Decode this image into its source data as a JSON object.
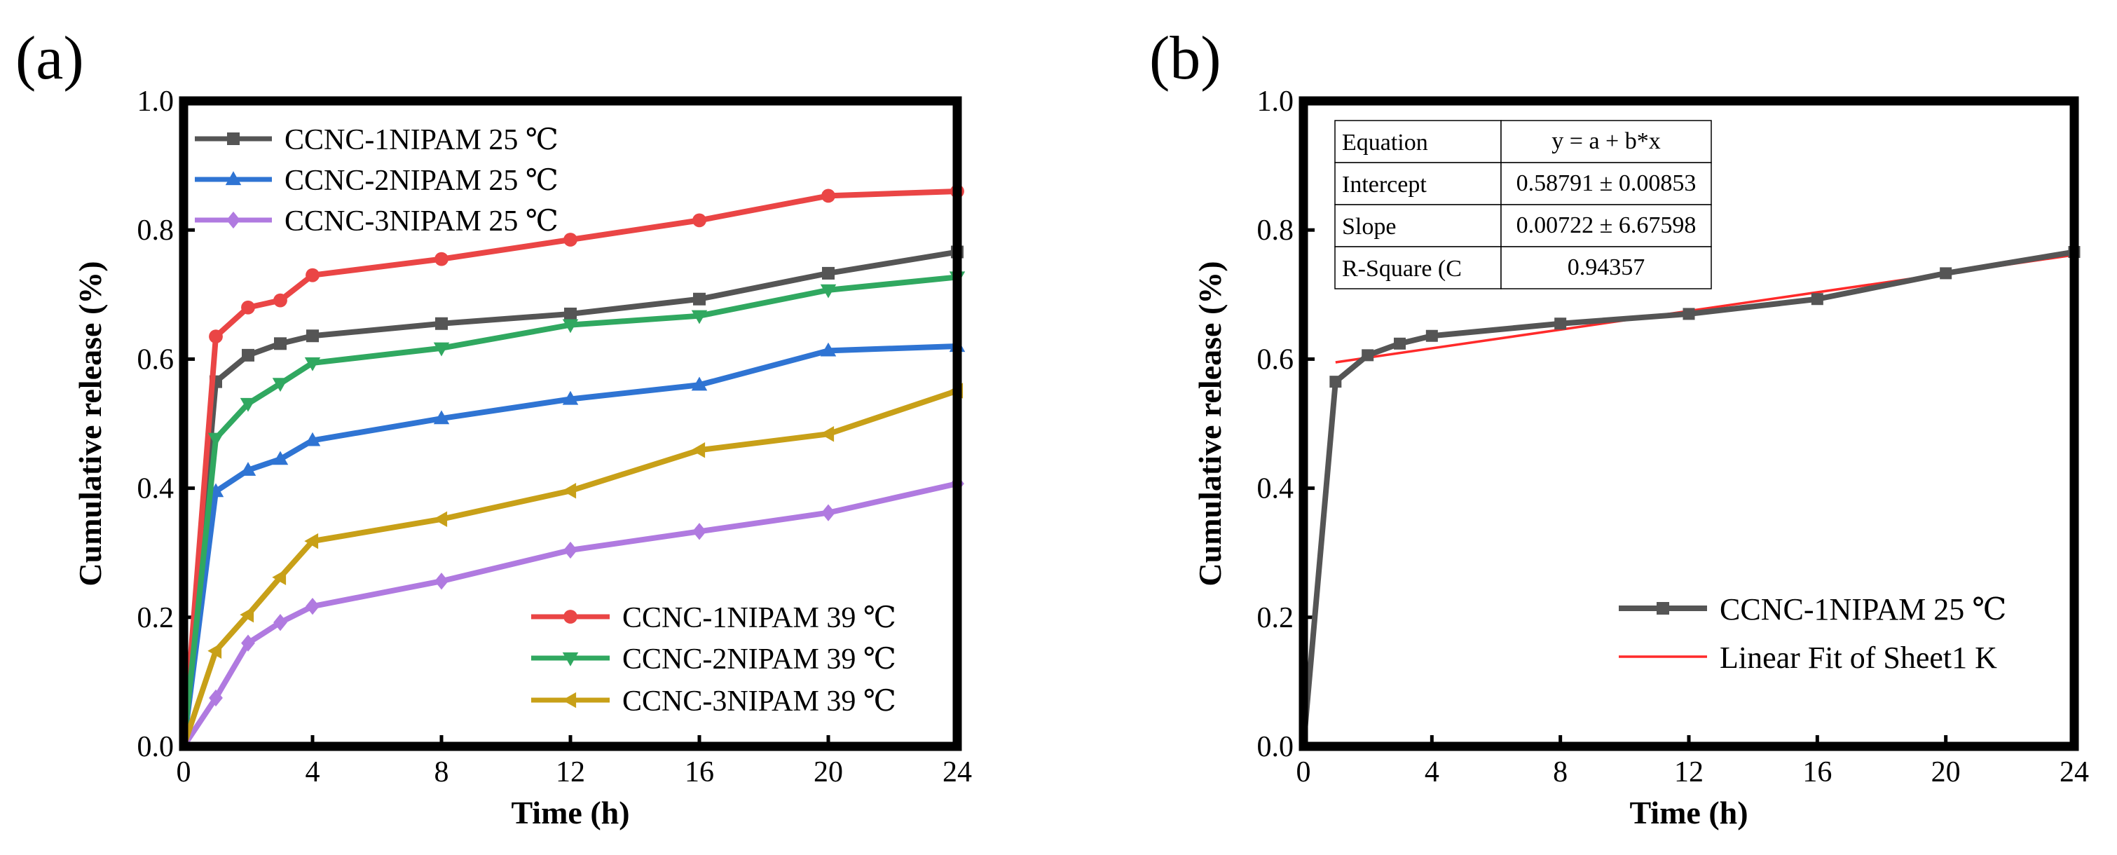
{
  "colors": {
    "series_1": "#555555",
    "series_2": "#2f74d3",
    "series_3": "#b07ae0",
    "series_4": "#ea4545",
    "series_5": "#30a860",
    "series_6": "#c8a018",
    "fit_line": "#ff2a2a",
    "axis": "#000000"
  },
  "chart_data": [
    {
      "panel_label": "(a)",
      "type": "line",
      "xlabel": "Time (h)",
      "ylabel": "Cumulative release (%)",
      "xlim": [
        0,
        24
      ],
      "ylim": [
        0.0,
        1.0
      ],
      "x_ticks": [
        0,
        4,
        8,
        12,
        16,
        20,
        24
      ],
      "y_ticks": [
        "0.0",
        "0.2",
        "0.4",
        "0.6",
        "0.8",
        "1.0"
      ],
      "grid": false,
      "x": [
        0,
        1,
        2,
        3,
        4,
        8,
        12,
        16,
        20,
        24
      ],
      "series": [
        {
          "name": "CCNC-1NIPAM 25 ℃",
          "marker": "square",
          "values": [
            0.0,
            0.565,
            0.606,
            0.624,
            0.636,
            0.655,
            0.67,
            0.693,
            0.733,
            0.766
          ]
        },
        {
          "name": "CCNC-2NIPAM 25 ℃",
          "marker": "triangle-up",
          "values": [
            0.0,
            0.395,
            0.428,
            0.445,
            0.474,
            0.508,
            0.538,
            0.56,
            0.613,
            0.62
          ]
        },
        {
          "name": "CCNC-3NIPAM 25 ℃",
          "marker": "diamond",
          "values": [
            0.0,
            0.075,
            0.16,
            0.192,
            0.217,
            0.256,
            0.304,
            0.333,
            0.362,
            0.407
          ]
        },
        {
          "name": "CCNC-1NIPAM 39 ℃",
          "marker": "circle",
          "values": [
            0.0,
            0.635,
            0.68,
            0.691,
            0.73,
            0.755,
            0.785,
            0.815,
            0.853,
            0.86
          ]
        },
        {
          "name": "CCNC-2NIPAM 39 ℃",
          "marker": "triangle-down",
          "values": [
            0.0,
            0.477,
            0.531,
            0.562,
            0.594,
            0.617,
            0.653,
            0.667,
            0.707,
            0.727
          ]
        },
        {
          "name": "CCNC-3NIPAM 39 ℃",
          "marker": "triangle-left",
          "values": [
            0.0,
            0.148,
            0.204,
            0.262,
            0.318,
            0.352,
            0.396,
            0.459,
            0.484,
            0.551
          ]
        }
      ],
      "legends": [
        {
          "position": "top-left",
          "series_indices": [
            0,
            1,
            2
          ]
        },
        {
          "position": "bottom-right",
          "series_indices": [
            3,
            4,
            5
          ]
        }
      ]
    },
    {
      "panel_label": "(b)",
      "type": "line",
      "xlabel": "Time (h)",
      "ylabel": "Cumulative release (%)",
      "xlim": [
        0,
        24
      ],
      "ylim": [
        0.0,
        1.0
      ],
      "x_ticks": [
        0,
        4,
        8,
        12,
        16,
        20,
        24
      ],
      "y_ticks": [
        "0.0",
        "0.2",
        "0.4",
        "0.6",
        "0.8",
        "1.0"
      ],
      "grid": false,
      "x": [
        0,
        1,
        2,
        3,
        4,
        8,
        12,
        16,
        20,
        24
      ],
      "series": [
        {
          "name": "CCNC-1NIPAM 25 ℃",
          "marker": "square",
          "values": [
            0.0,
            0.565,
            0.606,
            0.624,
            0.636,
            0.655,
            0.67,
            0.693,
            0.733,
            0.766
          ]
        }
      ],
      "fit_line": {
        "name": "Linear Fit of Sheet1 K",
        "x_range": [
          1,
          24
        ],
        "y_range": [
          0.595,
          0.7614
        ]
      },
      "fit_table": {
        "rows": [
          [
            "Equation",
            "y = a + b*x"
          ],
          [
            "Intercept",
            "0.58791 ± 0.00853"
          ],
          [
            "Slope",
            "0.00722 ± 6.67598"
          ],
          [
            "R-Square (C",
            "0.94357"
          ]
        ]
      },
      "legend_position": "bottom-right"
    }
  ]
}
